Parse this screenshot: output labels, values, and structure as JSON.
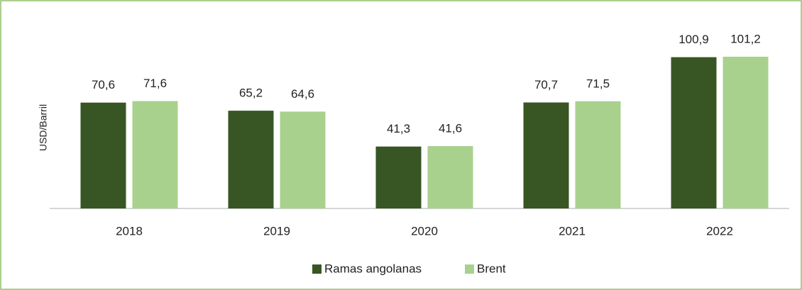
{
  "chart_data": {
    "type": "bar",
    "y_label": "USD/Barril",
    "categories": [
      "2018",
      "2019",
      "2020",
      "2021",
      "2022"
    ],
    "series": [
      {
        "name": "Ramas angolanas",
        "color": "#375623",
        "values": [
          70.6,
          65.2,
          41.3,
          70.7,
          100.9
        ],
        "value_labels": [
          "70,6",
          "65,2",
          "41,3",
          "70,7",
          "100,9"
        ]
      },
      {
        "name": "Brent",
        "color": "#a9d18e",
        "values": [
          71.6,
          64.6,
          41.6,
          71.5,
          101.2
        ],
        "value_labels": [
          "71,6",
          "64,6",
          "41,6",
          "71,5",
          "101,2"
        ]
      }
    ],
    "legend": "bottom"
  }
}
